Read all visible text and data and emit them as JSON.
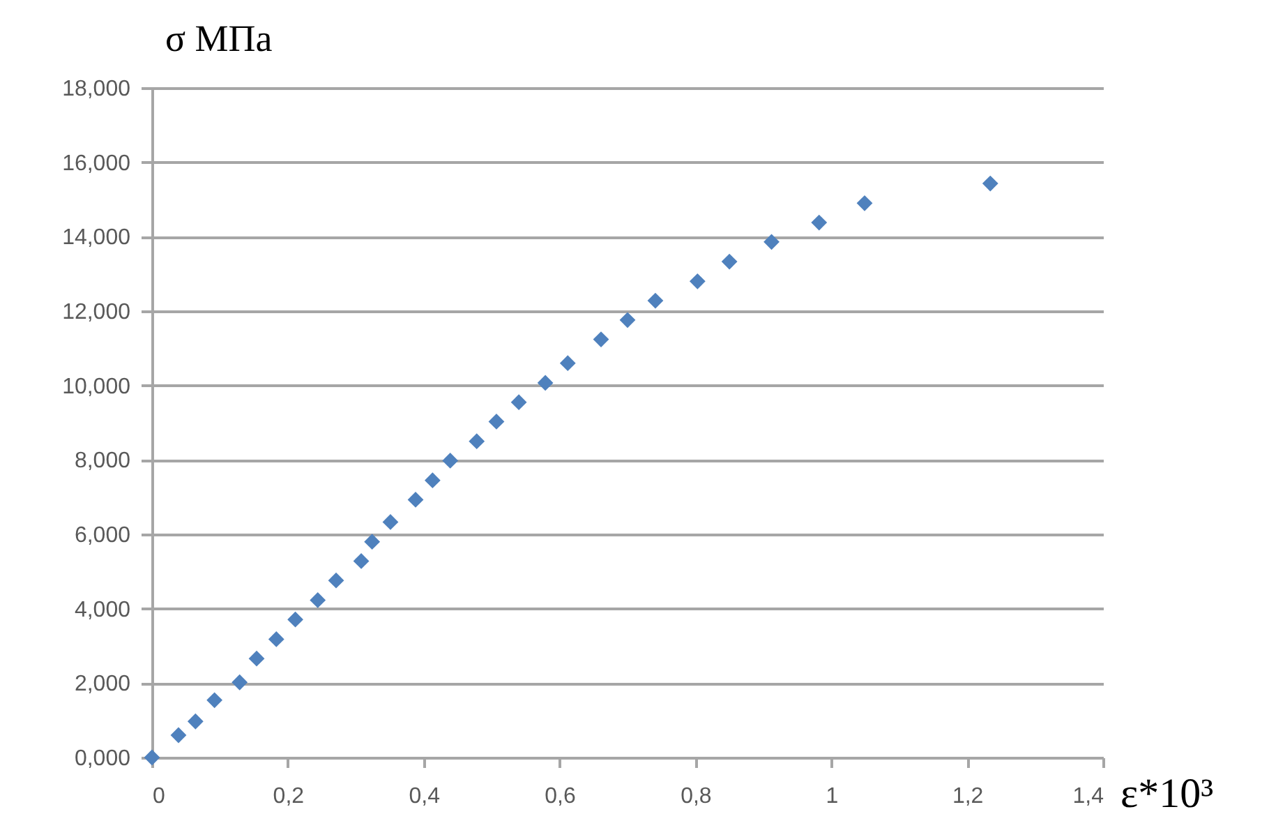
{
  "chart_data": {
    "type": "scatter",
    "xlabel": "ε*10³",
    "ylabel": "σ МПа",
    "marker": "diamond",
    "grid": "y",
    "x": [
      0,
      0.039,
      0.064,
      0.092,
      0.129,
      0.154,
      0.183,
      0.211,
      0.244,
      0.271,
      0.308,
      0.324,
      0.351,
      0.388,
      0.413,
      0.439,
      0.478,
      0.507,
      0.54,
      0.579,
      0.612,
      0.661,
      0.7,
      0.741,
      0.803,
      0.85,
      0.912,
      0.982,
      1.049,
      1.234
    ],
    "series": [
      {
        "color": "#4f81bd",
        "values": [
          0,
          0.6,
          0.97,
          1.54,
          2.02,
          2.66,
          3.18,
          3.71,
          4.23,
          4.76,
          5.28,
          5.8,
          6.33,
          6.93,
          7.45,
          7.98,
          8.5,
          9.03,
          9.55,
          10.07,
          10.6,
          11.24,
          11.76,
          12.28,
          12.8,
          13.33,
          13.86,
          14.38,
          14.9,
          15.43
        ]
      }
    ],
    "xlim": [
      0,
      1.4
    ],
    "xticks": [
      0,
      {
        "value": 0.2,
        "label": "0,2"
      },
      {
        "value": 0.4,
        "label": "0,4"
      },
      {
        "value": 0.6,
        "label": "0,6"
      },
      {
        "value": 0.8,
        "label": "0,8"
      },
      1,
      {
        "value": 1.2,
        "label": "1,2"
      },
      {
        "value": 1.4,
        "label": "1,4"
      }
    ],
    "ylim": [
      0,
      18
    ],
    "yticks": [
      {
        "value": 0,
        "label": "0,000"
      },
      {
        "value": 2,
        "label": "2,000"
      },
      {
        "value": 4,
        "label": "4,000"
      },
      {
        "value": 6,
        "label": "6,000"
      },
      {
        "value": 8,
        "label": "8,000"
      },
      {
        "value": 10,
        "label": "10,000"
      },
      {
        "value": 12,
        "label": "12,000"
      },
      {
        "value": 14,
        "label": "14,000"
      },
      {
        "value": 16,
        "label": "16,000"
      },
      {
        "value": 18,
        "label": "18,000"
      }
    ]
  }
}
